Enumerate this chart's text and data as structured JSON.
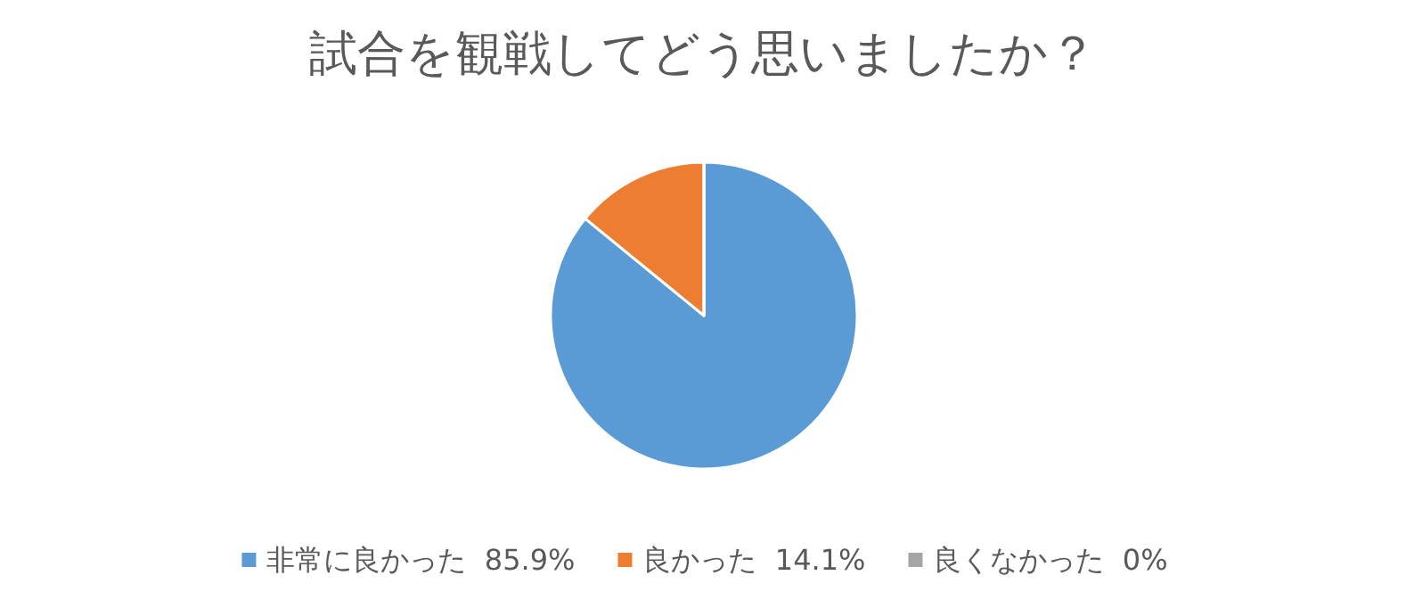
{
  "chart_data": {
    "type": "pie",
    "title": "試合を観戦してどう思いましたか？",
    "categories": [
      "非常に良かった",
      "良かった",
      "良くなかった"
    ],
    "values": [
      85.9,
      14.1,
      0
    ],
    "value_labels": [
      "85.9%",
      "14.1%",
      "0%"
    ],
    "colors": [
      "#5b9bd5",
      "#ed7d31",
      "#a5a5a5"
    ],
    "legend": "bottom"
  }
}
